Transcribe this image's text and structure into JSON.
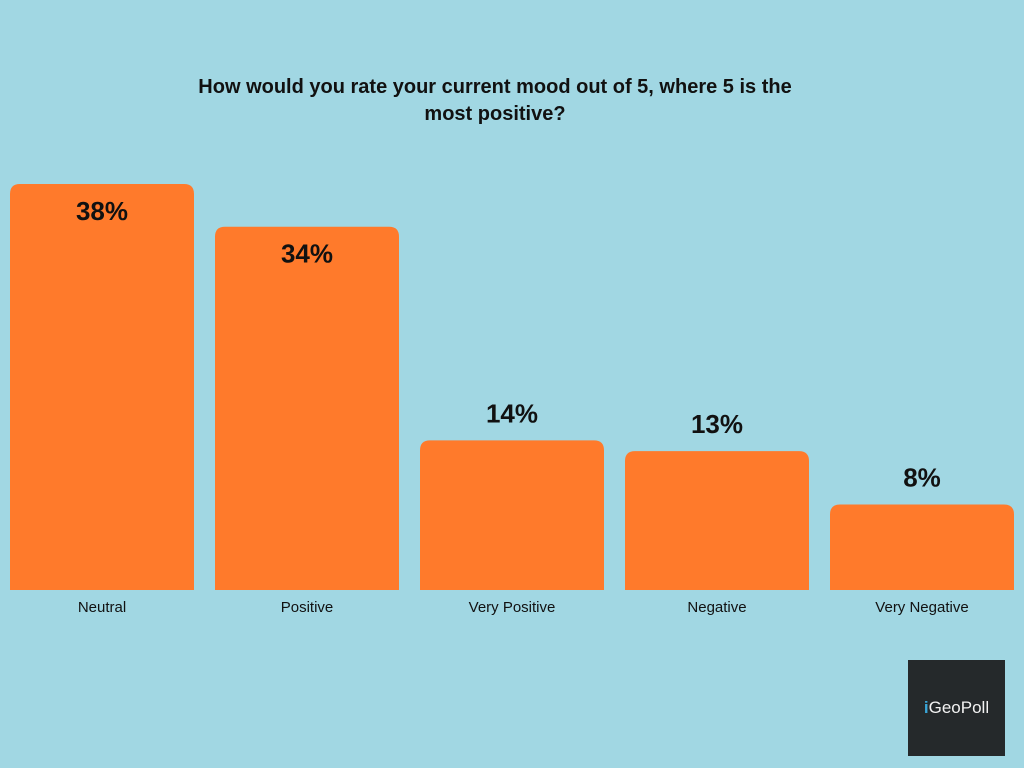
{
  "chart_data": {
    "type": "bar",
    "title": "How would you rate your current mood out of 5, where 5 is the most positive?",
    "categories": [
      "Neutral",
      "Positive",
      "Very Positive",
      "Negative",
      "Very Negative"
    ],
    "values": [
      38,
      34,
      14,
      13,
      8
    ],
    "value_labels": [
      "38%",
      "34%",
      "14%",
      "13%",
      "8%"
    ],
    "unit": "%",
    "ylim": [
      0,
      38
    ],
    "grid": false,
    "bar_color": "#ff7a2b"
  },
  "background_color": "#a1d7e3",
  "logo": {
    "prefix": "i",
    "text": "GeoPoll"
  }
}
